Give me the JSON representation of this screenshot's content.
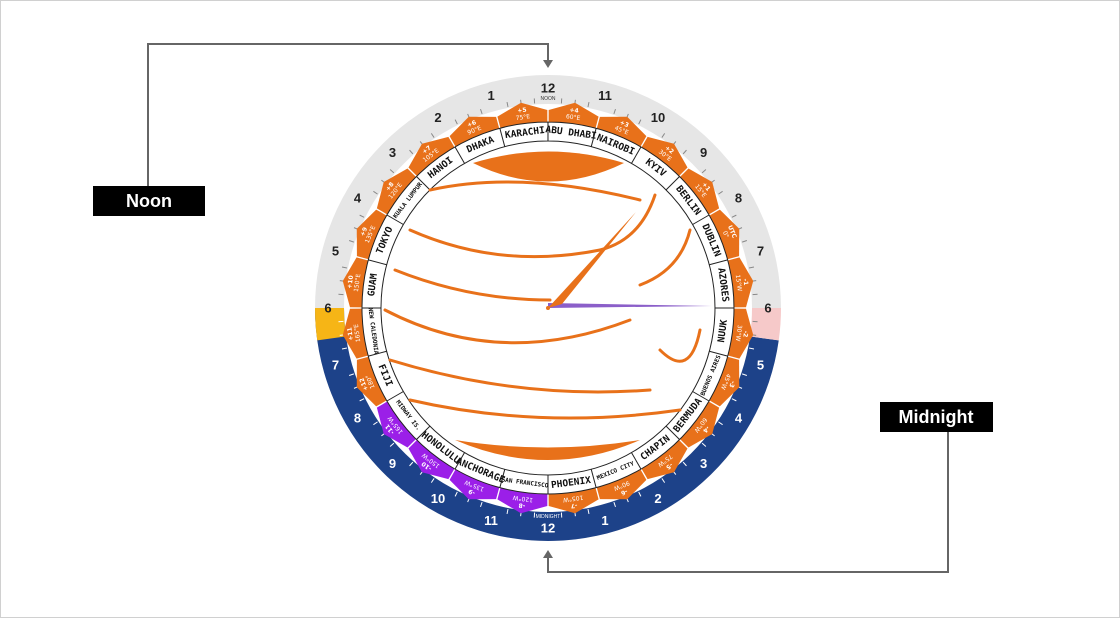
{
  "callouts": {
    "noon": "Noon",
    "midnight": "Midnight"
  },
  "dial": {
    "noon_label": "NOON",
    "midnight_label": "MIDNIGHT",
    "hours": [
      "12",
      "11",
      "10",
      "9",
      "8",
      "7",
      "6",
      "5",
      "4",
      "3",
      "2",
      "1",
      "12",
      "11",
      "10",
      "9",
      "8",
      "7",
      "6",
      "5",
      "4",
      "3",
      "2",
      "1"
    ]
  },
  "cities": [
    {
      "name": "ABU DHABI",
      "offset": "+4",
      "longitude": "60°E",
      "color": "#e8711a"
    },
    {
      "name": "NAIROBI",
      "offset": "+3",
      "longitude": "45°E",
      "color": "#e8711a"
    },
    {
      "name": "KYIV",
      "offset": "+2",
      "longitude": "30°E",
      "color": "#e8711a"
    },
    {
      "name": "BERLIN",
      "offset": "+1",
      "longitude": "15°E",
      "color": "#e8711a"
    },
    {
      "name": "DUBLIN",
      "offset": "UTC",
      "longitude": "0°",
      "color": "#e8711a"
    },
    {
      "name": "AZORES",
      "offset": "-1",
      "longitude": "15°W",
      "color": "#e8711a"
    },
    {
      "name": "NUUK",
      "offset": "-2",
      "longitude": "30°W",
      "color": "#e8711a"
    },
    {
      "name": "BUENOS AIRES",
      "offset": "-3",
      "longitude": "45°W",
      "color": "#e8711a"
    },
    {
      "name": "BERMUDA",
      "offset": "-4",
      "longitude": "60°W",
      "color": "#e8711a"
    },
    {
      "name": "CHAPIN",
      "offset": "-5",
      "longitude": "75°W",
      "color": "#e8711a"
    },
    {
      "name": "MEXICO CITY",
      "offset": "-6",
      "longitude": "90°W",
      "color": "#e8711a"
    },
    {
      "name": "PHOENIX",
      "offset": "-7",
      "longitude": "105°W",
      "color": "#e8711a"
    },
    {
      "name": "SAN FRANCISCO",
      "offset": "-8",
      "longitude": "120°W",
      "color": "#9b1fe8"
    },
    {
      "name": "ANCHORAGE",
      "offset": "-9",
      "longitude": "135°W",
      "color": "#9b1fe8"
    },
    {
      "name": "HONOLULU",
      "offset": "-10",
      "longitude": "150°W",
      "color": "#9b1fe8"
    },
    {
      "name": "MIDWAY IS.",
      "offset": "-11",
      "longitude": "165°W",
      "color": "#9b1fe8"
    },
    {
      "name": "FIJI",
      "offset": "+12",
      "longitude": "180°",
      "color": "#e8711a"
    },
    {
      "name": "NEW CALEDONIA",
      "offset": "+11",
      "longitude": "165°E",
      "color": "#e8711a"
    },
    {
      "name": "GUAM",
      "offset": "+10",
      "longitude": "150°E",
      "color": "#e8711a"
    },
    {
      "name": "TOKYO",
      "offset": "+9",
      "longitude": "135°E",
      "color": "#e8711a"
    },
    {
      "name": "KUALA LUMPUR",
      "offset": "+8",
      "longitude": "120°E",
      "color": "#e8711a"
    },
    {
      "name": "HANOI",
      "offset": "+7",
      "longitude": "105°E",
      "color": "#e8711a"
    },
    {
      "name": "DHAKA",
      "offset": "+6",
      "longitude": "90°E",
      "color": "#e8711a"
    },
    {
      "name": "KARACHI",
      "offset": "+5",
      "longitude": "75°E",
      "color": "#e8711a"
    }
  ]
}
